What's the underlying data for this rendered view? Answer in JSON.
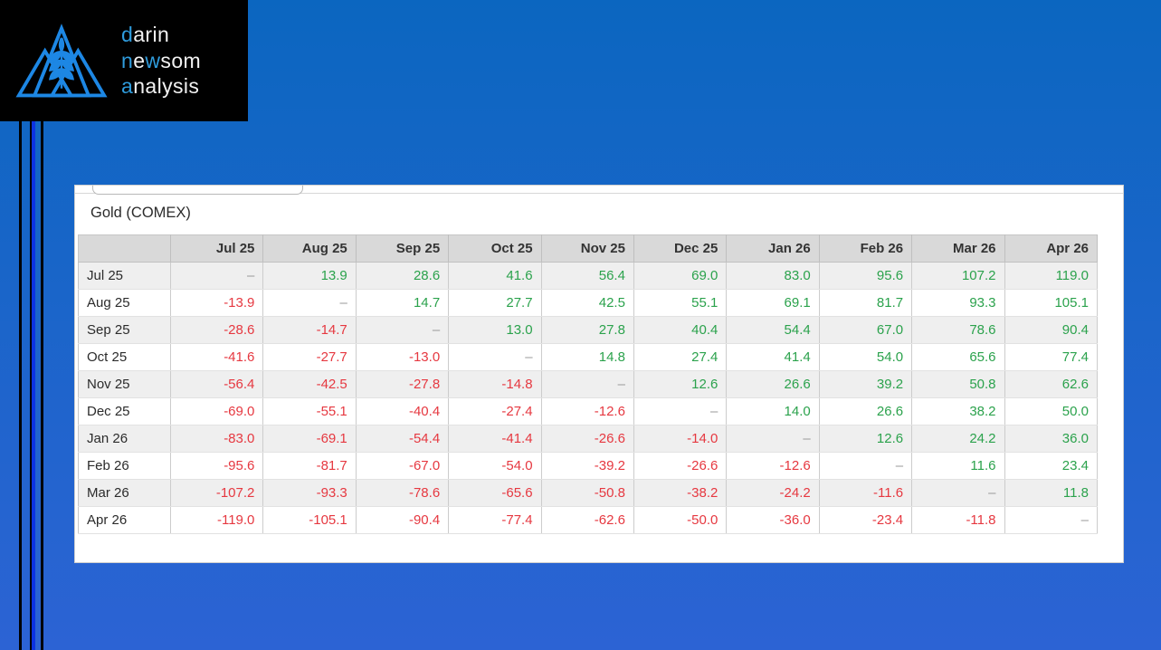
{
  "logo": {
    "brand_accent_color": "#2f9cdd",
    "triangle_color": "#1d87e4",
    "lines": [
      {
        "segments": [
          {
            "t": "d",
            "accent": true
          },
          {
            "t": "arin",
            "accent": false
          }
        ]
      },
      {
        "segments": [
          {
            "t": "n",
            "accent": true
          },
          {
            "t": "e",
            "accent": false
          },
          {
            "t": "w",
            "accent": true
          },
          {
            "t": "som",
            "accent": false
          }
        ]
      },
      {
        "segments": [
          {
            "t": "a",
            "accent": true
          },
          {
            "t": "nalysis",
            "accent": false
          }
        ]
      }
    ]
  },
  "spread_table": {
    "title": "Gold (COMEX)",
    "positive_color": "#2ba24c",
    "negative_color": "#e63840",
    "dash_color": "#999999",
    "columns": [
      "Jul 25",
      "Aug 25",
      "Sep 25",
      "Oct 25",
      "Nov 25",
      "Dec 25",
      "Jan 26",
      "Feb 26",
      "Mar 26",
      "Apr 26"
    ],
    "rows": [
      {
        "label": "Jul 25",
        "values": [
          "–",
          "13.9",
          "28.6",
          "41.6",
          "56.4",
          "69.0",
          "83.0",
          "95.6",
          "107.2",
          "119.0"
        ]
      },
      {
        "label": "Aug 25",
        "values": [
          "-13.9",
          "–",
          "14.7",
          "27.7",
          "42.5",
          "55.1",
          "69.1",
          "81.7",
          "93.3",
          "105.1"
        ]
      },
      {
        "label": "Sep 25",
        "values": [
          "-28.6",
          "-14.7",
          "–",
          "13.0",
          "27.8",
          "40.4",
          "54.4",
          "67.0",
          "78.6",
          "90.4"
        ]
      },
      {
        "label": "Oct 25",
        "values": [
          "-41.6",
          "-27.7",
          "-13.0",
          "–",
          "14.8",
          "27.4",
          "41.4",
          "54.0",
          "65.6",
          "77.4"
        ]
      },
      {
        "label": "Nov 25",
        "values": [
          "-56.4",
          "-42.5",
          "-27.8",
          "-14.8",
          "–",
          "12.6",
          "26.6",
          "39.2",
          "50.8",
          "62.6"
        ]
      },
      {
        "label": "Dec 25",
        "values": [
          "-69.0",
          "-55.1",
          "-40.4",
          "-27.4",
          "-12.6",
          "–",
          "14.0",
          "26.6",
          "38.2",
          "50.0"
        ]
      },
      {
        "label": "Jan 26",
        "values": [
          "-83.0",
          "-69.1",
          "-54.4",
          "-41.4",
          "-26.6",
          "-14.0",
          "–",
          "12.6",
          "24.2",
          "36.0"
        ]
      },
      {
        "label": "Feb 26",
        "values": [
          "-95.6",
          "-81.7",
          "-67.0",
          "-54.0",
          "-39.2",
          "-26.6",
          "-12.6",
          "–",
          "11.6",
          "23.4"
        ]
      },
      {
        "label": "Mar 26",
        "values": [
          "-107.2",
          "-93.3",
          "-78.6",
          "-65.6",
          "-50.8",
          "-38.2",
          "-24.2",
          "-11.6",
          "–",
          "11.8"
        ]
      },
      {
        "label": "Apr 26",
        "values": [
          "-119.0",
          "-105.1",
          "-90.4",
          "-77.4",
          "-62.6",
          "-50.0",
          "-36.0",
          "-23.4",
          "-11.8",
          "–"
        ]
      }
    ]
  }
}
